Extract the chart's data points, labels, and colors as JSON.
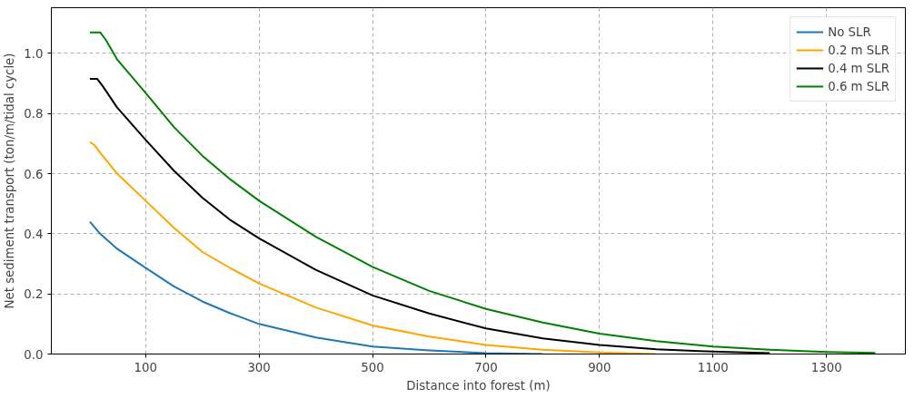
{
  "chart_data": {
    "type": "line",
    "xlabel": "Distance into forest (m)",
    "ylabel": "Net sediment transport (ton/m/tidal cycle)",
    "xlim": [
      -66,
      1439
    ],
    "ylim": [
      0,
      1.152
    ],
    "xticks": [
      100,
      300,
      500,
      700,
      900,
      1100,
      1300
    ],
    "yticks": [
      {
        "value": 0,
        "label": "0.0"
      },
      0.2,
      0.4,
      0.6,
      0.8,
      {
        "value": 1,
        "label": "1.0"
      }
    ],
    "grid": true,
    "legend": "top right",
    "line_style": "solid",
    "series": [
      {
        "name": "No SLR",
        "color": "#1f77b4",
        "x": [
          2,
          20,
          50,
          100,
          150,
          200,
          250,
          300,
          400,
          500,
          600,
          700,
          800
        ],
        "values": [
          0.44,
          0.4,
          0.35,
          0.287,
          0.225,
          0.175,
          0.135,
          0.1,
          0.055,
          0.025,
          0.012,
          0.003,
          0.0
        ]
      },
      {
        "name": "0.2 m SLR",
        "color": "#ffa500",
        "x": [
          2,
          10,
          20,
          50,
          100,
          150,
          200,
          250,
          300,
          400,
          500,
          600,
          700,
          800,
          900,
          1000
        ],
        "values": [
          0.705,
          0.695,
          0.67,
          0.6,
          0.51,
          0.42,
          0.34,
          0.285,
          0.235,
          0.155,
          0.095,
          0.058,
          0.03,
          0.014,
          0.005,
          0.0
        ]
      },
      {
        "name": "0.4 m SLR",
        "color": "#000000",
        "x": [
          2,
          15,
          25,
          50,
          100,
          150,
          200,
          250,
          300,
          400,
          500,
          600,
          700,
          800,
          900,
          1000,
          1100,
          1200
        ],
        "values": [
          0.915,
          0.915,
          0.89,
          0.82,
          0.713,
          0.61,
          0.52,
          0.445,
          0.385,
          0.28,
          0.195,
          0.135,
          0.085,
          0.052,
          0.03,
          0.016,
          0.008,
          0.003
        ]
      },
      {
        "name": "0.6 m SLR",
        "color": "#008000",
        "x": [
          2,
          20,
          30,
          50,
          100,
          150,
          200,
          250,
          300,
          400,
          500,
          600,
          700,
          800,
          900,
          1000,
          1100,
          1200,
          1300,
          1386
        ],
        "values": [
          1.07,
          1.07,
          1.045,
          0.98,
          0.869,
          0.755,
          0.66,
          0.58,
          0.51,
          0.39,
          0.29,
          0.21,
          0.15,
          0.105,
          0.068,
          0.043,
          0.025,
          0.014,
          0.007,
          0.004
        ]
      }
    ]
  }
}
